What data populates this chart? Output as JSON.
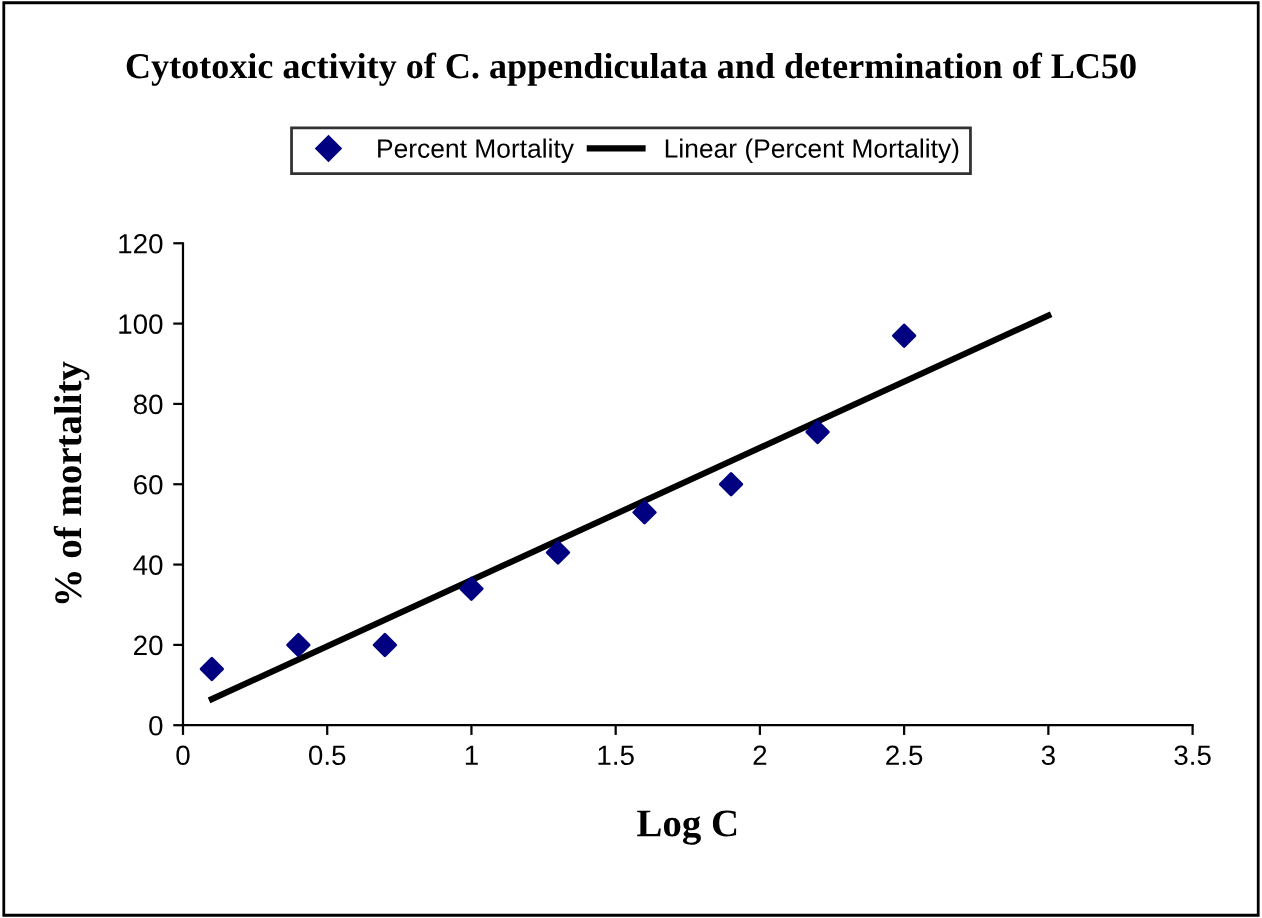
{
  "chart_data": {
    "type": "scatter",
    "title": "Cytotoxic activity of C. appendiculata and determination of LC50",
    "xlabel": "Log C",
    "ylabel": "% of mortality",
    "x": [
      0.1,
      0.4,
      0.7,
      1.0,
      1.3,
      1.6,
      1.9,
      2.2,
      2.5
    ],
    "series": [
      {
        "name": "Percent Mortality",
        "color": "#000080",
        "marker": "diamond",
        "values": [
          14,
          20,
          20,
          34,
          43,
          53,
          60,
          73,
          97
        ]
      },
      {
        "name": "Linear (Percent Mortality)",
        "type": "line",
        "color": "#000000",
        "marker": "none",
        "line_style": "solid",
        "x": [
          0.1,
          3.0
        ],
        "values": [
          6.5,
          102
        ]
      }
    ],
    "xlim": [
      0,
      3.5
    ],
    "xticks": [
      0,
      0.5,
      1,
      1.5,
      2,
      2.5,
      3,
      3.5
    ],
    "ylim": [
      0,
      120
    ],
    "yticks": [
      0,
      20,
      40,
      60,
      80,
      100,
      120
    ],
    "grid": false,
    "legend": "top"
  }
}
